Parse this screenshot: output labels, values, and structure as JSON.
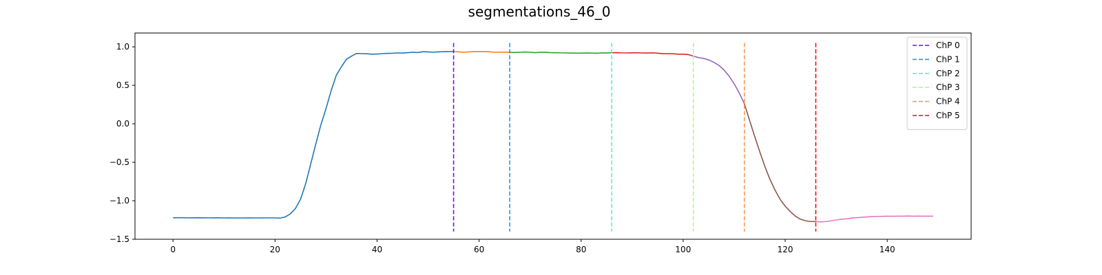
{
  "chart_data": {
    "type": "line",
    "title": "segmentations_46_0",
    "xlabel": "",
    "ylabel": "",
    "xlim": [
      -7.45,
      156.45
    ],
    "ylim": [
      -1.5,
      1.18
    ],
    "xticks": [
      0,
      20,
      40,
      60,
      80,
      100,
      120,
      140
    ],
    "yticks": [
      -1.5,
      -1.0,
      -0.5,
      0.0,
      0.5,
      1.0
    ],
    "ytick_labels": [
      "−1.5",
      "−1.0",
      "−0.5",
      "0.0",
      "0.5",
      "1.0"
    ],
    "grid": false,
    "legend_position": "top-right",
    "segments": [
      {
        "color": "#1f77b4",
        "x": [
          0,
          1,
          2,
          3,
          4,
          5,
          6,
          7,
          8,
          9,
          10,
          11,
          12,
          13,
          14,
          15,
          16,
          17,
          18,
          19,
          20,
          21,
          22,
          23,
          24,
          25,
          26,
          27,
          28,
          29,
          30,
          31,
          32,
          33,
          34,
          35,
          36,
          37,
          38,
          39,
          40,
          41,
          42,
          43,
          44,
          45,
          46,
          47,
          48,
          49,
          50,
          51,
          52,
          53,
          54,
          55
        ],
        "y": [
          -1.22,
          -1.22,
          -1.22,
          -1.222,
          -1.221,
          -1.22,
          -1.221,
          -1.222,
          -1.221,
          -1.221,
          -1.223,
          -1.222,
          -1.223,
          -1.223,
          -1.223,
          -1.222,
          -1.223,
          -1.223,
          -1.222,
          -1.222,
          -1.223,
          -1.225,
          -1.21,
          -1.17,
          -1.1,
          -0.98,
          -0.78,
          -0.52,
          -0.26,
          -0.01,
          0.2,
          0.43,
          0.63,
          0.74,
          0.84,
          0.88,
          0.915,
          0.912,
          0.91,
          0.905,
          0.907,
          0.912,
          0.915,
          0.917,
          0.921,
          0.919,
          0.925,
          0.93,
          0.926,
          0.937,
          0.935,
          0.93,
          0.935,
          0.937,
          0.938,
          0.94
        ]
      },
      {
        "color": "#ff7f0e",
        "x": [
          55,
          56,
          57,
          58,
          59,
          60,
          61,
          62,
          63,
          64,
          65,
          66
        ],
        "y": [
          0.94,
          0.935,
          0.93,
          0.935,
          0.938,
          0.937,
          0.938,
          0.936,
          0.93,
          0.93,
          0.932,
          0.928
        ]
      },
      {
        "color": "#2ca02c",
        "x": [
          66,
          67,
          68,
          69,
          70,
          71,
          72,
          73,
          74,
          75,
          76,
          77,
          78,
          79,
          80,
          81,
          82,
          83,
          84,
          85,
          86
        ],
        "y": [
          0.928,
          0.927,
          0.93,
          0.933,
          0.93,
          0.925,
          0.93,
          0.929,
          0.925,
          0.924,
          0.922,
          0.921,
          0.919,
          0.918,
          0.918,
          0.92,
          0.919,
          0.917,
          0.92,
          0.92,
          0.924
        ]
      },
      {
        "color": "#d62728",
        "x": [
          86,
          87,
          88,
          89,
          90,
          91,
          92,
          93,
          94,
          95,
          96,
          97,
          98,
          99,
          100,
          101,
          102
        ],
        "y": [
          0.924,
          0.925,
          0.922,
          0.921,
          0.923,
          0.923,
          0.921,
          0.92,
          0.922,
          0.918,
          0.91,
          0.912,
          0.91,
          0.905,
          0.905,
          0.9,
          0.88
        ]
      },
      {
        "color": "#9467bd",
        "x": [
          102,
          103,
          104,
          105,
          106,
          107,
          108,
          109,
          110,
          111,
          112
        ],
        "y": [
          0.88,
          0.86,
          0.85,
          0.83,
          0.8,
          0.76,
          0.7,
          0.62,
          0.52,
          0.4,
          0.26
        ]
      },
      {
        "color": "#8c564b",
        "x": [
          112,
          113,
          114,
          115,
          116,
          117,
          118,
          119,
          120,
          121,
          122,
          123,
          124,
          125,
          126
        ],
        "y": [
          0.26,
          0.05,
          -0.16,
          -0.36,
          -0.55,
          -0.72,
          -0.86,
          -0.98,
          -1.07,
          -1.14,
          -1.2,
          -1.24,
          -1.26,
          -1.27,
          -1.27
        ]
      },
      {
        "color": "#e377c2",
        "x": [
          126,
          127,
          128,
          129,
          130,
          131,
          132,
          133,
          134,
          135,
          136,
          137,
          138,
          139,
          140,
          141,
          142,
          143,
          144,
          145,
          146,
          147,
          148,
          149
        ],
        "y": [
          -1.27,
          -1.275,
          -1.27,
          -1.26,
          -1.25,
          -1.24,
          -1.235,
          -1.225,
          -1.22,
          -1.215,
          -1.21,
          -1.205,
          -1.203,
          -1.202,
          -1.2,
          -1.201,
          -1.2,
          -1.2,
          -1.198,
          -1.2,
          -1.199,
          -1.2,
          -1.2,
          -1.2
        ]
      }
    ],
    "changepoints": [
      {
        "name": "ChP 0",
        "x": 55,
        "color": "#8000ff"
      },
      {
        "name": "ChP 1",
        "x": 66,
        "color": "#1996f3"
      },
      {
        "name": "ChP 2",
        "x": 86,
        "color": "#4cf2ce"
      },
      {
        "name": "ChP 3",
        "x": 102,
        "color": "#b2f396"
      },
      {
        "name": "ChP 4",
        "x": 112,
        "color": "#ff964f"
      },
      {
        "name": "ChP 5",
        "x": 126,
        "color": "#ff0000"
      }
    ],
    "changepoint_range": [
      -1.4,
      1.05
    ]
  }
}
